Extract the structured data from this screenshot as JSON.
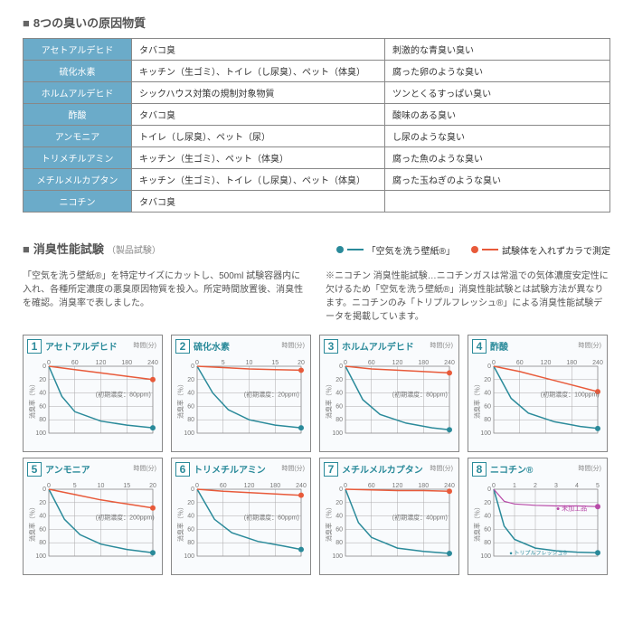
{
  "section1_title": "8つの臭いの原因物質",
  "substances": {
    "rows": [
      {
        "name": "アセトアルデヒド",
        "source": "タバコ臭",
        "smell": "刺激的な青臭い臭い"
      },
      {
        "name": "硫化水素",
        "source": "キッチン（生ゴミ）、トイレ（し尿臭）、ペット（体臭）",
        "smell": "腐った卵のような臭い"
      },
      {
        "name": "ホルムアルデヒド",
        "source": "シックハウス対策の規制対象物質",
        "smell": "ツンとくるすっぱい臭い"
      },
      {
        "name": "酢酸",
        "source": "タバコ臭",
        "smell": "酸味のある臭い"
      },
      {
        "name": "アンモニア",
        "source": "トイレ（し尿臭）、ペット（尿）",
        "smell": "し尿のような臭い"
      },
      {
        "name": "トリメチルアミン",
        "source": "キッチン（生ゴミ）、ペット（体臭）",
        "smell": "腐った魚のような臭い"
      },
      {
        "name": "メチルメルカプタン",
        "source": "キッチン（生ゴミ）、トイレ（し尿臭）、ペット（体臭）",
        "smell": "腐った玉ねぎのような臭い"
      },
      {
        "name": "ニコチン",
        "source": "タバコ臭",
        "smell": ""
      }
    ]
  },
  "section2_title": "消臭性能試験",
  "section2_sub": "（製品試験）",
  "legend_teal": "「空気を洗う壁紙®」",
  "legend_red": "試験体を入れずカラで測定",
  "desc_left": "「空気を洗う壁紙®」を特定サイズにカットし、500ml 試験容器内に入れ、各種所定濃度の悪臭原因物質を投入。所定時間放置後、消臭性を確認。消臭率で表しました。",
  "desc_right": "※ニコチン 消臭性能試験…ニコチンガスは常温での気体濃度安定性に欠けるため「空気を洗う壁紙®」消臭性能試験とは試験方法が異なります。ニコチンのみ「トリプルフレッシュ®」による消臭性能試験データを掲載しています。",
  "charts": [
    {
      "num": "1",
      "title": "アセトアルデヒド",
      "xmax": 240,
      "xtick": 60,
      "initial": "(初期濃度：80ppm)",
      "teal": [
        [
          0,
          0
        ],
        [
          30,
          45
        ],
        [
          60,
          68
        ],
        [
          120,
          82
        ],
        [
          180,
          88
        ],
        [
          240,
          92
        ]
      ],
      "red": [
        [
          0,
          0
        ],
        [
          60,
          5
        ],
        [
          120,
          10
        ],
        [
          180,
          15
        ],
        [
          240,
          20
        ]
      ]
    },
    {
      "num": "2",
      "title": "硫化水素",
      "xmax": 20,
      "xtick": 5,
      "initial": "(初期濃度：20ppm)",
      "teal": [
        [
          0,
          0
        ],
        [
          3,
          40
        ],
        [
          6,
          65
        ],
        [
          10,
          80
        ],
        [
          15,
          88
        ],
        [
          20,
          92
        ]
      ],
      "red": [
        [
          0,
          0
        ],
        [
          5,
          2
        ],
        [
          10,
          4
        ],
        [
          15,
          5
        ],
        [
          20,
          6
        ]
      ]
    },
    {
      "num": "3",
      "title": "ホルムアルデヒド",
      "xmax": 240,
      "xtick": 60,
      "initial": "(初期濃度：80ppm)",
      "teal": [
        [
          0,
          0
        ],
        [
          40,
          50
        ],
        [
          80,
          72
        ],
        [
          140,
          85
        ],
        [
          200,
          92
        ],
        [
          240,
          95
        ]
      ],
      "red": [
        [
          0,
          0
        ],
        [
          60,
          4
        ],
        [
          120,
          6
        ],
        [
          180,
          8
        ],
        [
          240,
          10
        ]
      ]
    },
    {
      "num": "4",
      "title": "酢酸",
      "xmax": 240,
      "xtick": 60,
      "initial": "(初期濃度：100ppm)",
      "teal": [
        [
          0,
          0
        ],
        [
          40,
          48
        ],
        [
          80,
          70
        ],
        [
          140,
          83
        ],
        [
          200,
          90
        ],
        [
          240,
          93
        ]
      ],
      "red": [
        [
          0,
          0
        ],
        [
          60,
          8
        ],
        [
          120,
          18
        ],
        [
          180,
          28
        ],
        [
          240,
          38
        ]
      ]
    },
    {
      "num": "5",
      "title": "アンモニア",
      "xmax": 20,
      "xtick": 5,
      "initial": "(初期濃度：200ppm)",
      "teal": [
        [
          0,
          0
        ],
        [
          3,
          45
        ],
        [
          6,
          68
        ],
        [
          10,
          82
        ],
        [
          15,
          90
        ],
        [
          20,
          95
        ]
      ],
      "red": [
        [
          0,
          0
        ],
        [
          5,
          8
        ],
        [
          10,
          16
        ],
        [
          15,
          22
        ],
        [
          20,
          28
        ]
      ]
    },
    {
      "num": "6",
      "title": "トリメチルアミン",
      "xmax": 240,
      "xtick": 60,
      "initial": "(初期濃度：60ppm)",
      "teal": [
        [
          0,
          0
        ],
        [
          40,
          45
        ],
        [
          80,
          65
        ],
        [
          140,
          78
        ],
        [
          200,
          85
        ],
        [
          240,
          90
        ]
      ],
      "red": [
        [
          0,
          0
        ],
        [
          60,
          3
        ],
        [
          120,
          5
        ],
        [
          180,
          7
        ],
        [
          240,
          9
        ]
      ]
    },
    {
      "num": "7",
      "title": "メチルメルカプタン",
      "xmax": 240,
      "xtick": 60,
      "initial": "(初期濃度：40ppm)",
      "teal": [
        [
          0,
          0
        ],
        [
          30,
          50
        ],
        [
          60,
          72
        ],
        [
          120,
          88
        ],
        [
          180,
          93
        ],
        [
          240,
          96
        ]
      ],
      "red": [
        [
          0,
          0
        ],
        [
          60,
          1
        ],
        [
          120,
          2
        ],
        [
          180,
          2
        ],
        [
          240,
          3
        ]
      ]
    },
    {
      "num": "8",
      "title": "ニコチン®",
      "xmax": 5,
      "xtick": 1,
      "initial": "",
      "teal": [
        [
          0,
          0
        ],
        [
          0.5,
          55
        ],
        [
          1,
          75
        ],
        [
          2,
          88
        ],
        [
          3,
          92
        ],
        [
          4,
          94
        ],
        [
          5,
          95
        ]
      ],
      "purple": [
        [
          0,
          0
        ],
        [
          0.5,
          18
        ],
        [
          1,
          22
        ],
        [
          2,
          24
        ],
        [
          3,
          25
        ],
        [
          4,
          25
        ],
        [
          5,
          26
        ]
      ],
      "purple_label": "未加工品",
      "teal_label": "トリプルフレッシュ®"
    }
  ],
  "ylabel": "消臭率（％）",
  "ymax": 100,
  "ytick": 20
}
